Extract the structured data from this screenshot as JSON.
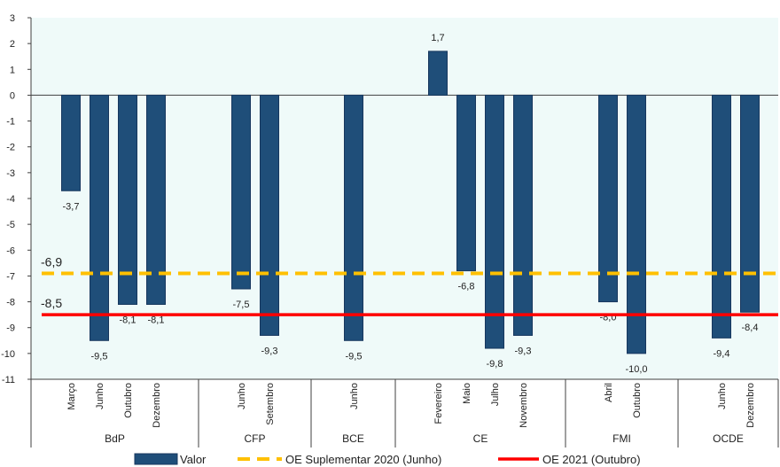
{
  "chart_data": {
    "type": "bar",
    "ylim": [
      -11,
      3
    ],
    "yticks": [
      3,
      2,
      1,
      0,
      -1,
      -2,
      -3,
      -4,
      -5,
      -6,
      -7,
      -8,
      -9,
      -10,
      -11
    ],
    "plot_background": "#effaf9",
    "bar_color": "#1f4e79",
    "grid": false,
    "groups": [
      {
        "name": "BdP",
        "items": [
          {
            "label": "Março",
            "value": -3.7,
            "text": "-3,7"
          },
          {
            "label": "Junho",
            "value": -9.5,
            "text": "-9,5"
          },
          {
            "label": "Outubro",
            "value": -8.1,
            "text": "-8,1"
          },
          {
            "label": "Dezembro",
            "value": -8.1,
            "text": "-8,1"
          }
        ]
      },
      {
        "name": "CFP",
        "items": [
          {
            "label": "Junho",
            "value": -7.5,
            "text": "-7,5"
          },
          {
            "label": "Setembro",
            "value": -9.3,
            "text": "-9,3"
          }
        ]
      },
      {
        "name": "BCE",
        "items": [
          {
            "label": "Junho",
            "value": -9.5,
            "text": "-9,5"
          }
        ]
      },
      {
        "name": "CE",
        "items": [
          {
            "label": "Fevereiro",
            "value": 1.7,
            "text": "1,7"
          },
          {
            "label": "Maio",
            "value": -6.8,
            "text": "-6,8"
          },
          {
            "label": "Julho",
            "value": -9.8,
            "text": "-9,8"
          },
          {
            "label": "Novembro",
            "value": -9.3,
            "text": "-9,3"
          }
        ]
      },
      {
        "name": "FMI",
        "items": [
          {
            "label": "Abril",
            "value": -8.0,
            "text": "-8,0"
          },
          {
            "label": "Outubro",
            "value": -10.0,
            "text": "-10,0"
          }
        ]
      },
      {
        "name": "OCDE",
        "items": [
          {
            "label": "Junho",
            "value": -9.4,
            "text": "-9,4"
          },
          {
            "label": "Dezembro",
            "value": -8.4,
            "text": "-8,4"
          }
        ]
      }
    ],
    "reference_lines": [
      {
        "name": "OE Suplementar 2020 (Junho)",
        "value": -6.9,
        "text": "-6,9",
        "color": "#ffc000",
        "style": "dashed"
      },
      {
        "name": "OE 2021 (Outubro)",
        "value": -8.5,
        "text": "-8,5",
        "color": "#ff0000",
        "style": "solid"
      }
    ],
    "legend": {
      "position": "bottom",
      "entries": [
        "Valor",
        "OE Suplementar 2020 (Junho)",
        "OE 2021 (Outubro)"
      ]
    }
  }
}
